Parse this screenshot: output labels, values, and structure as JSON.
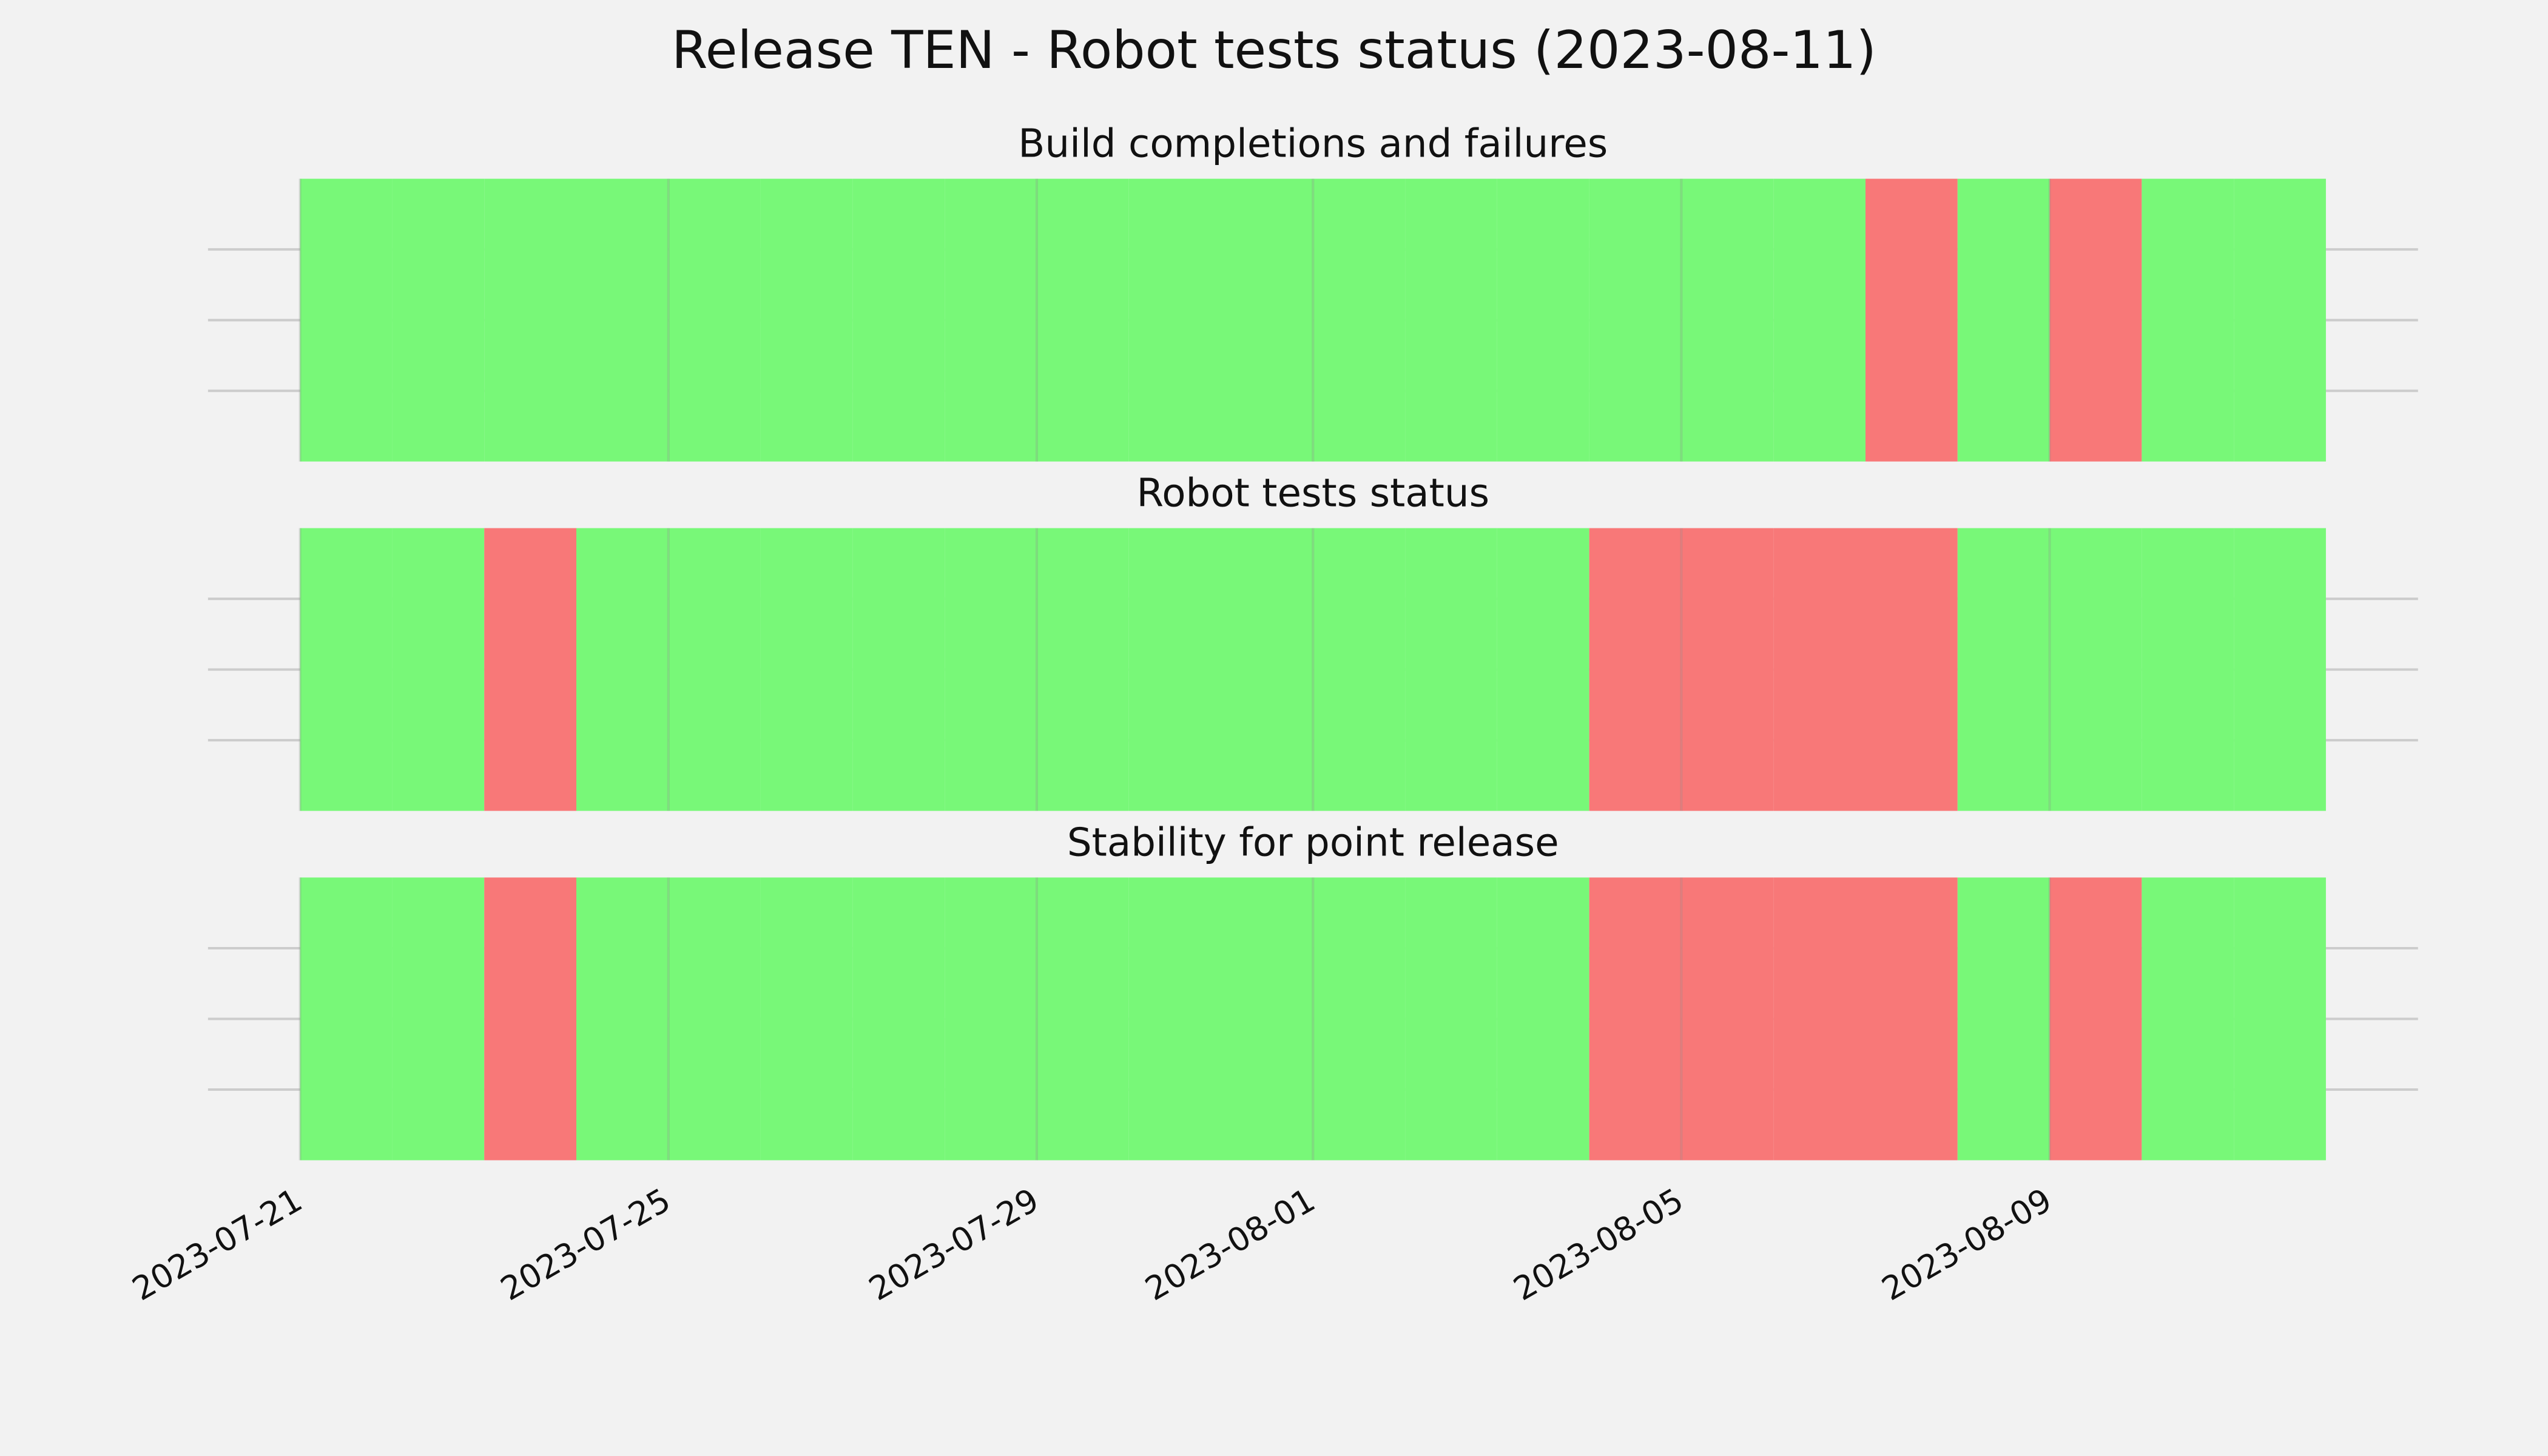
{
  "chart_data": {
    "type": "timeline",
    "title": "Release TEN - Robot tests status (2023-08-11)",
    "x": [
      "2023-07-21",
      "2023-07-22",
      "2023-07-23",
      "2023-07-24",
      "2023-07-25",
      "2023-07-26",
      "2023-07-27",
      "2023-07-28",
      "2023-07-29",
      "2023-07-30",
      "2023-07-31",
      "2023-08-01",
      "2023-08-02",
      "2023-08-03",
      "2023-08-04",
      "2023-08-05",
      "2023-08-06",
      "2023-08-07",
      "2023-08-08",
      "2023-08-09",
      "2023-08-10",
      "2023-08-11"
    ],
    "xlim": [
      "2023-07-20",
      "2023-08-13"
    ],
    "xticks": [
      "2023-07-21",
      "2023-07-25",
      "2023-07-29",
      "2023-08-01",
      "2023-08-05",
      "2023-08-09"
    ],
    "ylim": [
      0,
      1
    ],
    "yticks": [
      0.25,
      0.5,
      0.75
    ],
    "grid": true,
    "status_colors": [
      "#f87878",
      "#78f878"
    ],
    "panels": [
      {
        "title": "Build completions and failures",
        "values": [
          1,
          1,
          1,
          1,
          1,
          1,
          1,
          1,
          1,
          1,
          1,
          1,
          1,
          1,
          1,
          1,
          1,
          0,
          1,
          0,
          1,
          1
        ]
      },
      {
        "title": "Robot tests status",
        "values": [
          1,
          1,
          0,
          1,
          1,
          1,
          1,
          1,
          1,
          1,
          1,
          1,
          1,
          1,
          0,
          0,
          0,
          0,
          1,
          1,
          1,
          1
        ]
      },
      {
        "title": "Stability for point release",
        "values": [
          1,
          1,
          0,
          1,
          1,
          1,
          1,
          1,
          1,
          1,
          1,
          1,
          1,
          1,
          0,
          0,
          0,
          0,
          1,
          0,
          1,
          1
        ]
      }
    ]
  }
}
